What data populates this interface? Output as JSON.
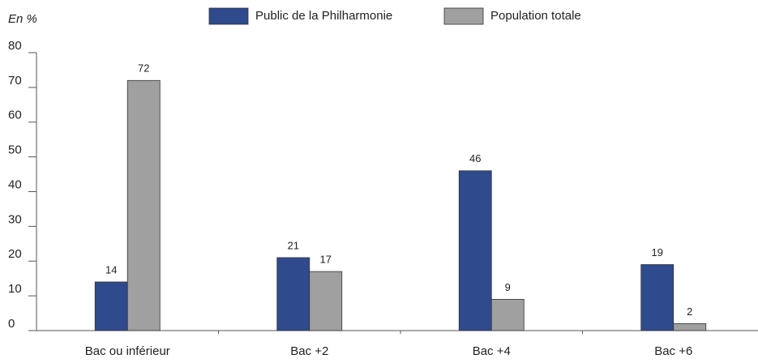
{
  "chart_data": {
    "type": "bar",
    "y_label": "En %",
    "categories": [
      "Bac ou inférieur",
      "Bac +2",
      "Bac +4",
      "Bac +6"
    ],
    "series": [
      {
        "name": "Public de la Philharmonie",
        "color": "#2f4a8d",
        "values": [
          14,
          21,
          46,
          19
        ]
      },
      {
        "name": "Population totale",
        "color": "#a0a0a0",
        "values": [
          72,
          17,
          9,
          2
        ]
      }
    ],
    "ylim": [
      0,
      80
    ],
    "yticks": [
      0,
      10,
      20,
      30,
      40,
      50,
      60,
      70,
      80
    ],
    "legend": "top"
  }
}
